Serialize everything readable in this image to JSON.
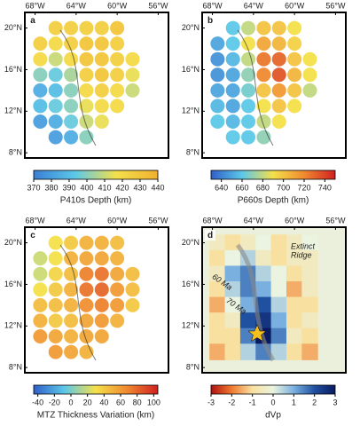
{
  "grid": {
    "lon": [
      -67.5,
      -66,
      -64.5,
      -63,
      -61.5,
      -60,
      -58.5
    ],
    "lat": [
      20,
      18.5,
      17,
      15.5,
      14,
      12.5,
      11,
      9.5
    ]
  },
  "xlim": [
    -69,
    -55
  ],
  "ylim": [
    7.5,
    21.5
  ],
  "xticks": [
    {
      "value": -68,
      "label": "68°W"
    },
    {
      "value": -64,
      "label": "64°W"
    },
    {
      "value": -60,
      "label": "60°W"
    },
    {
      "value": -56,
      "label": "56°W"
    }
  ],
  "yticks": [
    {
      "value": 20,
      "label": "20°N"
    },
    {
      "value": 16,
      "label": "16°N"
    },
    {
      "value": 12,
      "label": "12°N"
    },
    {
      "value": 8,
      "label": "8°N"
    }
  ],
  "panels": [
    {
      "label": "a",
      "style": "dots",
      "colorbar_label": "P410s Depth (km)",
      "clim": [
        370,
        440
      ],
      "cticks": [
        370,
        380,
        390,
        400,
        410,
        420,
        430,
        440
      ],
      "colormap": [
        "#3a7fd5",
        "#5cc8e8",
        "#f4e04a",
        "#f0b030"
      ],
      "values": [
        [
          null,
          425,
          425,
          425,
          425,
          430,
          null
        ],
        [
          425,
          420,
          425,
          430,
          430,
          425,
          null
        ],
        [
          420,
          410,
          420,
          430,
          430,
          425,
          420
        ],
        [
          400,
          395,
          405,
          425,
          430,
          425,
          415
        ],
        [
          385,
          390,
          400,
          420,
          425,
          420,
          410
        ],
        [
          390,
          395,
          400,
          415,
          420,
          420,
          null
        ],
        [
          380,
          385,
          395,
          410,
          415,
          null,
          null
        ],
        [
          null,
          380,
          385,
          400,
          null,
          null,
          null
        ]
      ]
    },
    {
      "label": "b",
      "style": "dots",
      "colorbar_label": "P660s Depth (km)",
      "clim": [
        630,
        750
      ],
      "cticks": [
        640,
        660,
        680,
        700,
        720,
        740
      ],
      "colormap": [
        "#2f5fc8",
        "#5cc8e8",
        "#f4e04a",
        "#f08a30",
        "#d02020"
      ],
      "values": [
        [
          null,
          660,
          680,
          700,
          700,
          690,
          null
        ],
        [
          650,
          660,
          690,
          710,
          705,
          695,
          null
        ],
        [
          645,
          655,
          680,
          725,
          730,
          700,
          690
        ],
        [
          645,
          650,
          670,
          720,
          735,
          705,
          690
        ],
        [
          650,
          650,
          665,
          700,
          715,
          700,
          680
        ],
        [
          655,
          650,
          660,
          690,
          700,
          690,
          null
        ],
        [
          660,
          655,
          660,
          680,
          690,
          null,
          null
        ],
        [
          null,
          660,
          660,
          670,
          null,
          null,
          null
        ]
      ]
    },
    {
      "label": "c",
      "style": "dots",
      "colorbar_label": "MTZ Thickness Variation (km)",
      "clim": [
        -45,
        105
      ],
      "cticks": [
        -40,
        -20,
        0,
        20,
        40,
        60,
        80,
        100
      ],
      "colormap": [
        "#2f5fc8",
        "#5cc8e8",
        "#f4e04a",
        "#f08a30",
        "#d02020"
      ],
      "values": [
        [
          null,
          30,
          40,
          50,
          50,
          45,
          null
        ],
        [
          20,
          30,
          50,
          55,
          55,
          50,
          null
        ],
        [
          20,
          35,
          45,
          70,
          75,
          55,
          45
        ],
        [
          30,
          40,
          50,
          75,
          80,
          60,
          45
        ],
        [
          45,
          45,
          50,
          65,
          70,
          60,
          40
        ],
        [
          50,
          40,
          45,
          55,
          60,
          50,
          null
        ],
        [
          60,
          55,
          50,
          55,
          55,
          null,
          null
        ],
        [
          null,
          60,
          55,
          50,
          null,
          null,
          null
        ]
      ]
    },
    {
      "label": "d",
      "style": "field",
      "colorbar_label": "dVp",
      "clim": [
        -3,
        3
      ],
      "cticks": [
        -3,
        -2,
        -1,
        0,
        1,
        2,
        3
      ],
      "colormap": [
        "#b01010",
        "#f07a30",
        "#f8e0a0",
        "#eaf4e0",
        "#7ab0e0",
        "#2050a0",
        "#0a1a60"
      ],
      "values": [
        [
          -0.5,
          -1,
          -0.5,
          0,
          -1,
          -0.5,
          0
        ],
        [
          -1,
          0,
          0.5,
          -0.5,
          -1,
          -0.5,
          -0.5
        ],
        [
          -0.5,
          1,
          1.5,
          0.5,
          0,
          -1,
          -0.5
        ],
        [
          -1,
          0.5,
          1.5,
          1,
          0,
          -1.5,
          -0.5
        ],
        [
          -1.5,
          0,
          1,
          2,
          0.5,
          -1,
          -1
        ],
        [
          -1,
          -0.5,
          2,
          2.5,
          1,
          -1,
          -0.5
        ],
        [
          -1,
          -1,
          1.5,
          3,
          1.5,
          -0.5,
          -1
        ],
        [
          -1.5,
          -1,
          0.5,
          1.5,
          0.5,
          -1,
          -1.5
        ]
      ],
      "annotations": [
        "Extinct",
        "Ridge",
        "60 Ma",
        "70 Ma"
      ]
    }
  ]
}
